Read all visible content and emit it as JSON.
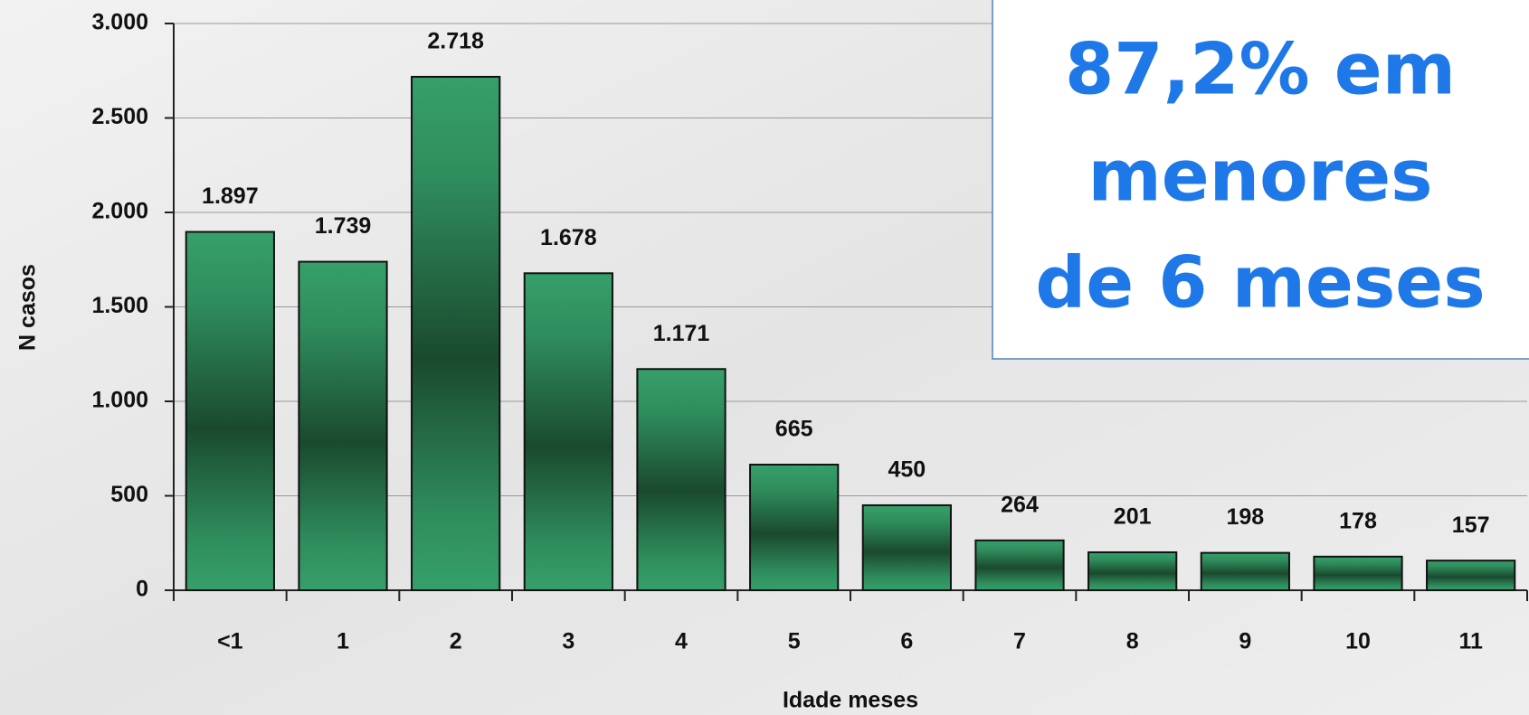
{
  "chart_data": {
    "type": "bar",
    "categories": [
      "<1",
      "1",
      "2",
      "3",
      "4",
      "5",
      "6",
      "7",
      "8",
      "9",
      "10",
      "11"
    ],
    "values": [
      1897,
      1739,
      2718,
      1678,
      1171,
      665,
      450,
      264,
      201,
      198,
      178,
      157
    ],
    "value_labels": [
      "1.897",
      "1.739",
      "2.718",
      "1.678",
      "1.171",
      "665",
      "450",
      "264",
      "201",
      "198",
      "178",
      "157"
    ],
    "color": "#339966",
    "ylim": [
      0,
      3000
    ],
    "yticks": [
      0,
      500,
      {
        "value": 1000,
        "label": "1.000"
      },
      {
        "value": 1500,
        "label": "1.500"
      },
      {
        "value": 2000,
        "label": "2.000"
      },
      {
        "value": 2500,
        "label": "2.500"
      },
      {
        "value": 3000,
        "label": "3.000"
      }
    ],
    "grid": true,
    "x_label": "Idade meses",
    "y_label": "N casos",
    "annotation": [
      "87,2% em",
      "menores",
      "de 6 meses"
    ]
  }
}
